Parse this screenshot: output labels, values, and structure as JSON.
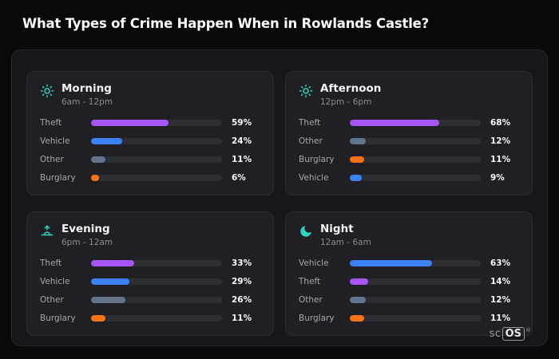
{
  "page": {
    "title": "What Types of Crime Happen When in Rowlands Castle?"
  },
  "brand": {
    "prefix": "sc",
    "suffix": "OS",
    "reg": "®"
  },
  "colors": {
    "theft": "#a855f7",
    "vehicle": "#3b82f6",
    "other": "#64748b",
    "burglary": "#f97316",
    "icon_accent": "#2dd4bf",
    "track": "#2d2d34",
    "panel_bg": "#1f1f24",
    "card_bg": "#17171b",
    "page_bg": "#09090b"
  },
  "chart_data": [
    {
      "type": "bar",
      "title": "Morning",
      "subtitle": "6am - 12pm",
      "icon": "sun-icon",
      "orientation": "horizontal",
      "xlim": [
        0,
        100
      ],
      "grid": false,
      "legend": "none",
      "categories": [
        "Theft",
        "Vehicle",
        "Other",
        "Burglary"
      ],
      "values": [
        59,
        24,
        11,
        6
      ],
      "labels": [
        "59%",
        "24%",
        "11%",
        "6%"
      ],
      "colors": [
        "#a855f7",
        "#3b82f6",
        "#64748b",
        "#f97316"
      ]
    },
    {
      "type": "bar",
      "title": "Afternoon",
      "subtitle": "12pm - 6pm",
      "icon": "sun-icon",
      "orientation": "horizontal",
      "xlim": [
        0,
        100
      ],
      "grid": false,
      "legend": "none",
      "categories": [
        "Theft",
        "Other",
        "Burglary",
        "Vehicle"
      ],
      "values": [
        68,
        12,
        11,
        9
      ],
      "labels": [
        "68%",
        "12%",
        "11%",
        "9%"
      ],
      "colors": [
        "#a855f7",
        "#64748b",
        "#f97316",
        "#3b82f6"
      ]
    },
    {
      "type": "bar",
      "title": "Evening",
      "subtitle": "6pm - 12am",
      "icon": "sunset-icon",
      "orientation": "horizontal",
      "xlim": [
        0,
        100
      ],
      "grid": false,
      "legend": "none",
      "categories": [
        "Theft",
        "Vehicle",
        "Other",
        "Burglary"
      ],
      "values": [
        33,
        29,
        26,
        11
      ],
      "labels": [
        "33%",
        "29%",
        "26%",
        "11%"
      ],
      "colors": [
        "#a855f7",
        "#3b82f6",
        "#64748b",
        "#f97316"
      ]
    },
    {
      "type": "bar",
      "title": "Night",
      "subtitle": "12am - 6am",
      "icon": "moon-icon",
      "orientation": "horizontal",
      "xlim": [
        0,
        100
      ],
      "grid": false,
      "legend": "none",
      "categories": [
        "Vehicle",
        "Theft",
        "Other",
        "Burglary"
      ],
      "values": [
        63,
        14,
        12,
        11
      ],
      "labels": [
        "63%",
        "14%",
        "12%",
        "11%"
      ],
      "colors": [
        "#3b82f6",
        "#a855f7",
        "#64748b",
        "#f97316"
      ]
    }
  ]
}
